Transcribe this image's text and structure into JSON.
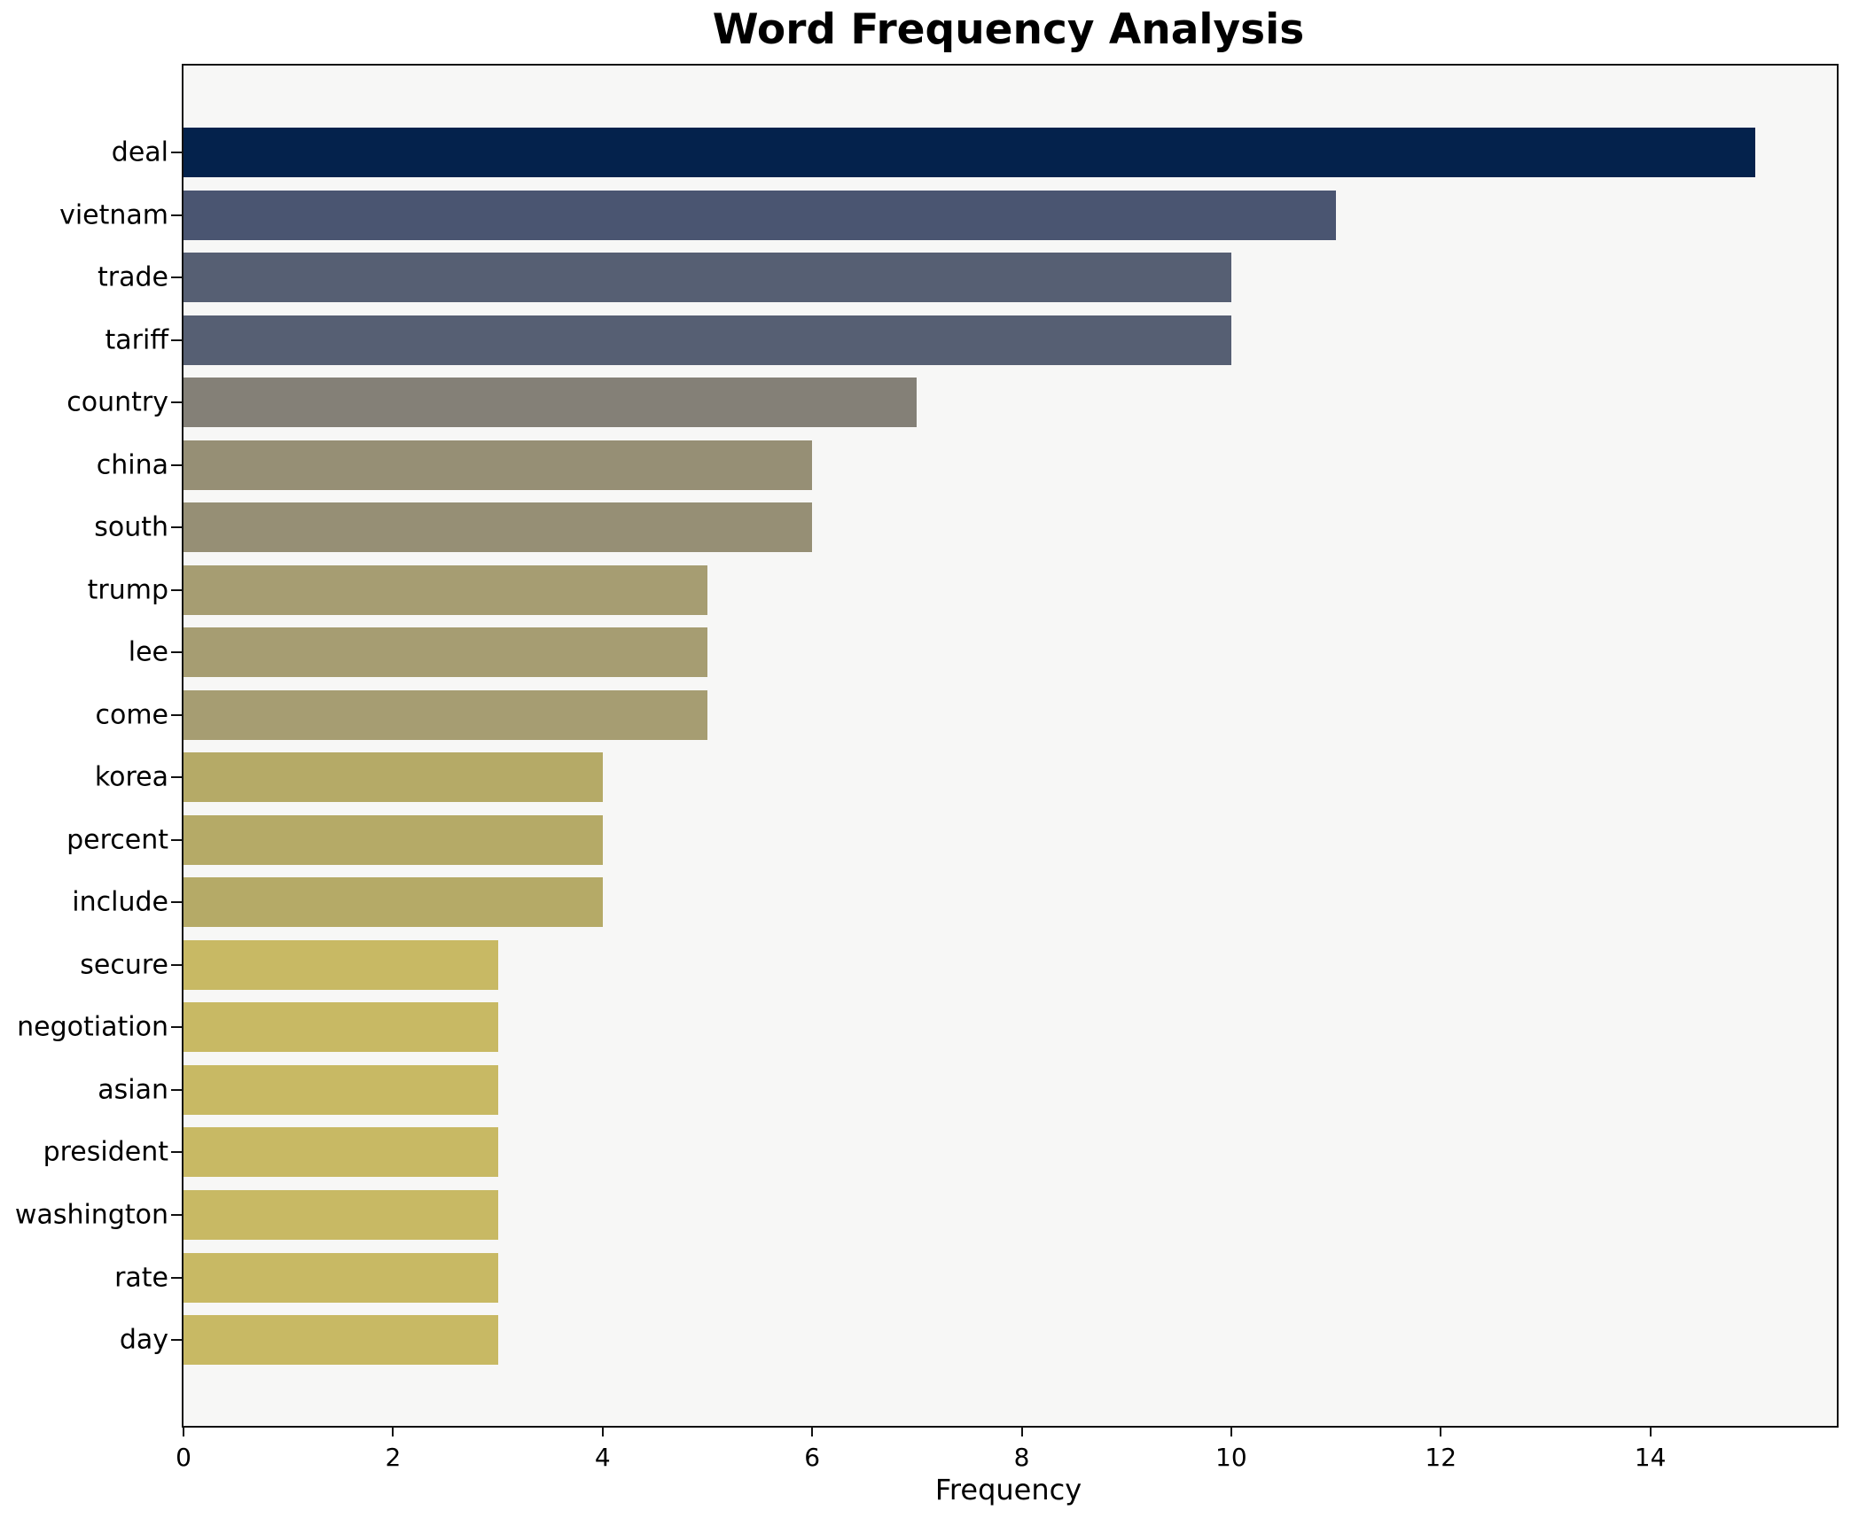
{
  "chart_data": {
    "type": "bar",
    "orientation": "horizontal",
    "title": "Word Frequency Analysis",
    "xlabel": "Frequency",
    "ylabel": "",
    "xlim": [
      0,
      15.78
    ],
    "x_ticks": [
      0,
      2,
      4,
      6,
      8,
      10,
      12,
      14
    ],
    "grid": false,
    "legend": "none",
    "plot_background": "#f7f7f6",
    "spine_color": "#111111",
    "categories": [
      "deal",
      "vietnam",
      "trade",
      "tariff",
      "country",
      "china",
      "south",
      "trump",
      "lee",
      "come",
      "korea",
      "percent",
      "include",
      "secure",
      "negotiation",
      "asian",
      "president",
      "washington",
      "rate",
      "day"
    ],
    "values": [
      15,
      11,
      10,
      10,
      7,
      6,
      6,
      5,
      5,
      5,
      4,
      4,
      4,
      3,
      3,
      3,
      3,
      3,
      3,
      3
    ],
    "bar_colors": [
      "#04224c",
      "#4a5571",
      "#565f73",
      "#565f73",
      "#848077",
      "#968f75",
      "#968f75",
      "#a69d72",
      "#a69d72",
      "#a69d72",
      "#b5aa67",
      "#b5aa67",
      "#b5aa67",
      "#c8b964",
      "#c8b964",
      "#c8b964",
      "#c8b964",
      "#c8b964",
      "#c8b964",
      "#c8b964"
    ]
  }
}
